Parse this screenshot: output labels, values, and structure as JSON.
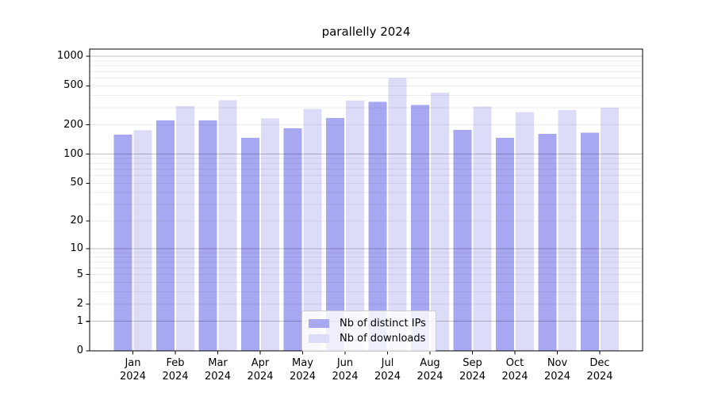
{
  "figure": {
    "background": "#ffffff",
    "axis_color": "#000000"
  },
  "chart_data": {
    "type": "bar",
    "title": "parallelly 2024",
    "categories": [
      "Jan",
      "Feb",
      "Mar",
      "Apr",
      "May",
      "Jun",
      "Jul",
      "Aug",
      "Sep",
      "Oct",
      "Nov",
      "Dec"
    ],
    "category_year": "2024",
    "series": [
      {
        "name": "Nb of distinct IPs",
        "color": "#a8a8f2",
        "values": [
          158,
          221,
          221,
          147,
          184,
          235,
          345,
          318,
          177,
          147,
          161,
          166
        ]
      },
      {
        "name": "Nb of downloads",
        "color": "#dcdcf8",
        "values": [
          176,
          310,
          358,
          232,
          292,
          353,
          600,
          426,
          306,
          271,
          282,
          300
        ]
      }
    ],
    "xlabel": "",
    "ylabel": "",
    "yscale": "log1p",
    "yticks": [
      0,
      1,
      2,
      5,
      10,
      20,
      50,
      100,
      200,
      500,
      1000
    ],
    "ylim": [
      0,
      1185
    ],
    "grid": {
      "minor_color": "rgba(0,0,0,0.07)",
      "major_color": "rgba(0,0,0,0.24)",
      "major_lines": [
        1,
        10,
        100,
        1000
      ]
    },
    "legend_position": "lower center"
  }
}
